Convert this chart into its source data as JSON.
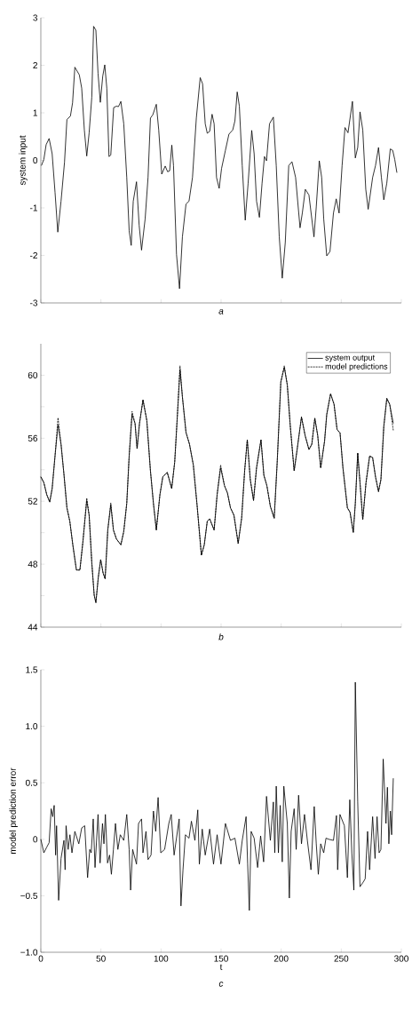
{
  "chart_data": [
    {
      "type": "line",
      "ylabel": "system input",
      "annotations": [
        "a"
      ],
      "xlim": [
        0,
        300
      ],
      "xticks": [
        0,
        50,
        100,
        150,
        200,
        250,
        300
      ],
      "ylim": [
        -3,
        3
      ],
      "yticks": [
        -3,
        -2,
        -1,
        0,
        1,
        2,
        3
      ],
      "tick_labels": "y",
      "series": [
        {
          "color": "#000000",
          "line_style": "solid",
          "x": [
            0.5,
            2.5,
            4.4,
            6.9,
            9.4,
            11.8,
            14.1,
            16.8,
            19.7,
            21.7,
            24.6,
            26.4,
            28.3,
            32,
            34,
            36.2,
            38.2,
            40.2,
            42.4,
            43.9,
            45.8,
            47.6,
            49.5,
            51.5,
            53.2,
            54.9,
            56.7,
            58.2,
            60.6,
            62.9,
            64.6,
            66.6,
            69,
            71.5,
            73.5,
            75.2,
            76.9,
            79.6,
            81.8,
            83.8,
            86.8,
            89.2,
            91.2,
            93.2,
            96.1,
            98.1,
            100.6,
            103.5,
            105.5,
            107.2,
            109,
            110.4,
            112.9,
            115.4,
            117.8,
            120.8,
            123.3,
            126.2,
            129.4,
            132.6,
            134.6,
            136.8,
            138.5,
            140.5,
            142.5,
            144.2,
            146.2,
            148.4,
            150.4,
            153.6,
            156.5,
            159.7,
            161.5,
            163.4,
            165.2,
            167.6,
            170.1,
            172.5,
            175.5,
            177.5,
            179.5,
            181.9,
            184.1,
            186.1,
            187.8,
            190.3,
            193.5,
            195.9,
            198.4,
            200.9,
            203.4,
            206.3,
            209,
            212,
            215.7,
            217.6,
            220.1,
            223.1,
            227.3,
            229.2,
            231.7,
            233.7,
            235.4,
            237.9,
            240.6,
            243.5,
            245.8,
            248.2,
            250.7,
            253.1,
            255.6,
            259.3,
            261.7,
            263.7,
            265.6,
            267.9,
            270.4,
            272.4,
            276.1,
            278.5,
            281,
            283.4,
            285.4,
            287.9,
            290.8,
            292.8,
            294.5,
            296.3
          ],
          "values": [
            -0.11,
            0.02,
            0.33,
            0.46,
            0.14,
            -0.67,
            -1.51,
            -0.86,
            -0.04,
            0.86,
            0.93,
            1.21,
            1.96,
            1.8,
            1.52,
            0.64,
            0.09,
            0.58,
            1.33,
            2.82,
            2.74,
            1.83,
            1.22,
            1.77,
            2.01,
            1.52,
            0.08,
            0.11,
            1.11,
            1.14,
            1.13,
            1.24,
            0.77,
            -0.36,
            -1.48,
            -1.79,
            -0.86,
            -0.45,
            -1.36,
            -1.89,
            -1.23,
            -0.36,
            0.89,
            0.96,
            1.18,
            0.64,
            -0.29,
            -0.12,
            -0.24,
            -0.22,
            0.32,
            -0.11,
            -1.98,
            -2.7,
            -1.61,
            -0.92,
            -0.86,
            -0.36,
            0.89,
            1.74,
            1.61,
            0.77,
            0.57,
            0.61,
            0.97,
            0.77,
            -0.36,
            -0.59,
            -0.17,
            0.21,
            0.55,
            0.64,
            0.83,
            1.44,
            1.14,
            -0.11,
            -1.26,
            -0.48,
            0.63,
            0.14,
            -0.86,
            -1.2,
            -0.48,
            0.08,
            -0.01,
            0.77,
            0.91,
            -0.11,
            -1.61,
            -2.48,
            -1.73,
            -0.11,
            -0.03,
            -0.36,
            -1.42,
            -1.11,
            -0.61,
            -0.73,
            -1.61,
            -0.98,
            -0.01,
            -0.36,
            -1.23,
            -2.01,
            -1.92,
            -1.11,
            -0.81,
            -1.11,
            -0.11,
            0.69,
            0.58,
            1.24,
            0.05,
            0.27,
            1.02,
            0.64,
            -0.61,
            -1.03,
            -0.36,
            -0.11,
            0.27,
            -0.36,
            -0.83,
            -0.48,
            0.24,
            0.21,
            0.02,
            -0.26
          ]
        }
      ]
    },
    {
      "type": "line",
      "annotations": [
        "b"
      ],
      "xlim": [
        0,
        300
      ],
      "xticks": [
        0,
        50,
        100,
        150,
        200,
        250,
        300
      ],
      "ylim": [
        44,
        62
      ],
      "yticks": [
        44,
        {
          "value": 46,
          "label": null
        },
        48,
        {
          "value": 50,
          "label": null
        },
        52,
        {
          "value": 54,
          "label": null
        },
        56,
        {
          "value": 58,
          "label": null
        },
        60
      ],
      "tick_labels": "y",
      "legend": "top right",
      "series": [
        {
          "name": "system output",
          "color": "#000000",
          "line_style": "solid",
          "x": [
            0,
            2.5,
            4.9,
            7.4,
            9.4,
            11.8,
            14.3,
            16.8,
            19.2,
            21.7,
            24.1,
            26.6,
            29.6,
            32.5,
            35,
            38.2,
            40.2,
            42.4,
            44.4,
            45.8,
            47.8,
            49.8,
            51.8,
            53.5,
            55.7,
            58.2,
            60.4,
            62.9,
            66.6,
            69,
            71.5,
            73.5,
            75.9,
            78.4,
            80.1,
            82.1,
            85,
            88.2,
            91.2,
            93.7,
            96.1,
            99.1,
            101.5,
            105.2,
            108.9,
            111.4,
            113.8,
            115.8,
            117.8,
            120.8,
            123.7,
            126.9,
            130.1,
            133.6,
            136,
            138.5,
            140.5,
            144.2,
            146.7,
            149.6,
            152.8,
            155.3,
            157.8,
            160.7,
            164.2,
            167.1,
            169.6,
            171.8,
            174.3,
            177,
            179.5,
            183.2,
            185.6,
            188.1,
            191,
            194.2,
            196.7,
            199.7,
            202.6,
            205.1,
            207.6,
            210.8,
            213.2,
            216.9,
            219.9,
            223.1,
            225.5,
            228,
            230.4,
            232.9,
            236.1,
            237.9,
            241.1,
            244,
            246.5,
            249,
            251.4,
            255.1,
            257.3,
            260,
            261.7,
            263.7,
            265.6,
            267.9,
            270.6,
            273.6,
            276.1,
            278.5,
            281,
            283,
            285.4,
            287.9,
            290.3,
            293.3
          ],
          "values": [
            53.55,
            53.18,
            52.42,
            51.95,
            52.8,
            54.87,
            56.84,
            55.62,
            53.74,
            51.58,
            50.73,
            49.23,
            47.63,
            47.63,
            49.42,
            52.05,
            51.11,
            48.1,
            46.03,
            45.56,
            47.16,
            48.29,
            47.44,
            47.07,
            50.17,
            51.77,
            50.17,
            49.6,
            49.23,
            50.08,
            51.86,
            54.87,
            57.5,
            56.94,
            55.34,
            56.94,
            58.44,
            57.12,
            53.93,
            51.86,
            50.17,
            52.42,
            53.55,
            53.83,
            52.8,
            54.49,
            57.69,
            60.36,
            58.63,
            56.37,
            55.62,
            54.3,
            51.67,
            48.57,
            49.23,
            50.73,
            50.88,
            50.17,
            52.42,
            54.12,
            52.99,
            52.52,
            51.58,
            51.11,
            49.32,
            50.92,
            53.93,
            55.9,
            53.37,
            52.05,
            54.12,
            55.9,
            53.65,
            52.99,
            51.67,
            50.92,
            54.49,
            59.57,
            60.51,
            59.38,
            56.75,
            53.93,
            55.24,
            57.35,
            56.18,
            55.28,
            55.62,
            57.27,
            56.18,
            54.12,
            55.81,
            57.5,
            58.82,
            58.16,
            56.56,
            56.33,
            54.12,
            51.58,
            51.3,
            50.02,
            51.86,
            55.06,
            53.18,
            50.83,
            53.18,
            54.87,
            54.77,
            53.55,
            52.61,
            53.37,
            56.75,
            58.53,
            58.16,
            56.94
          ]
        },
        {
          "name": "model predictions",
          "color": "#000000",
          "line_style": "dashed",
          "x": [
            0,
            2.5,
            4.9,
            7.4,
            9.4,
            11.8,
            14.3,
            16.8,
            19.2,
            21.7,
            24.1,
            26.6,
            29.6,
            32.5,
            35,
            38.2,
            40.2,
            42.4,
            44.4,
            45.8,
            47.8,
            49.8,
            51.8,
            53.5,
            55.7,
            58.2,
            60.4,
            62.9,
            66.6,
            69,
            71.5,
            73.5,
            75.9,
            78.4,
            80.1,
            82.1,
            85,
            88.2,
            91.2,
            93.7,
            96.1,
            99.1,
            101.5,
            105.2,
            108.9,
            111.4,
            113.8,
            115.8,
            117.8,
            120.8,
            123.7,
            126.9,
            130.1,
            133.6,
            136,
            138.5,
            140.5,
            144.2,
            146.7,
            149.6,
            152.8,
            155.3,
            157.8,
            160.7,
            164.2,
            167.1,
            169.6,
            171.8,
            174.3,
            177,
            179.5,
            183.2,
            185.6,
            188.1,
            191,
            194.2,
            196.7,
            199.7,
            202.6,
            205.1,
            207.6,
            210.8,
            213.2,
            216.9,
            219.9,
            223.1,
            225.5,
            228,
            230.4,
            232.9,
            236.1,
            237.9,
            241.1,
            244,
            246.5,
            249,
            251.4,
            255.1,
            257.3,
            260,
            261.7,
            263.7,
            265.6,
            267.9,
            270.6,
            273.6,
            276.1,
            278.5,
            281,
            283,
            285.4,
            287.9,
            290.3,
            293.3
          ],
          "values": [
            53.55,
            53.18,
            52.42,
            51.95,
            52.8,
            54.87,
            57.3,
            55.62,
            53.74,
            51.58,
            50.73,
            49.23,
            47.63,
            47.63,
            49.42,
            52.2,
            51.11,
            48.1,
            46.03,
            45.56,
            47.16,
            48.29,
            47.44,
            47.07,
            50.17,
            51.9,
            50.17,
            49.6,
            49.23,
            50.08,
            51.86,
            54.87,
            57.7,
            56.94,
            55.34,
            56.94,
            58.44,
            57.12,
            53.93,
            51.86,
            50.17,
            52.42,
            53.55,
            53.83,
            52.8,
            54.49,
            57.69,
            60.6,
            58.63,
            56.37,
            55.62,
            54.3,
            51.67,
            48.57,
            49.23,
            50.73,
            50.88,
            50.17,
            52.42,
            54.3,
            52.99,
            52.52,
            51.58,
            51.11,
            49.32,
            50.92,
            53.93,
            55.9,
            53.37,
            52.05,
            54.12,
            55.9,
            53.65,
            52.99,
            51.67,
            50.92,
            54.49,
            59.57,
            60.6,
            59.38,
            56.75,
            53.93,
            55.24,
            57.35,
            56.18,
            55.28,
            55.62,
            57.27,
            56.18,
            54.12,
            55.81,
            57.5,
            58.82,
            58.16,
            56.56,
            56.33,
            54.12,
            51.58,
            51.3,
            50.02,
            51.86,
            55.06,
            53.18,
            50.83,
            53.18,
            54.87,
            54.77,
            53.55,
            52.61,
            53.37,
            56.75,
            58.53,
            58.16,
            56.5
          ]
        }
      ]
    },
    {
      "type": "line",
      "xlabel": "t",
      "ylabel": "model prediction error",
      "annotations": [
        "c"
      ],
      "xlim": [
        0,
        300
      ],
      "xticks": [
        0,
        50,
        100,
        150,
        200,
        250,
        300
      ],
      "ylim": [
        -1.0,
        1.5
      ],
      "yticks": [
        {
          "value": -1.0,
          "label": "−1.0"
        },
        {
          "value": -0.5,
          "label": "−0.5"
        },
        0,
        0.5,
        {
          "value": 1.0,
          "label": "1.0"
        },
        1.5
      ],
      "series": [
        {
          "color": "#000000",
          "line_style": "solid",
          "x": [
            0,
            2.5,
            4.9,
            6.9,
            8.6,
            9.9,
            11.1,
            12.3,
            13.1,
            14.8,
            16.8,
            19.2,
            20.2,
            21,
            22.7,
            24.2,
            25.9,
            28.3,
            31.6,
            34,
            36.5,
            38.9,
            40.7,
            41.9,
            43.6,
            45.1,
            47.6,
            49.3,
            51.3,
            52.5,
            53.7,
            55.5,
            57.2,
            58.7,
            60.4,
            62.1,
            64.1,
            66.1,
            69,
            71.5,
            73.5,
            74.7,
            76.4,
            79.6,
            81.3,
            83.8,
            85,
            87.5,
            89.2,
            91.7,
            93.7,
            95.6,
            97.6,
            99.8,
            103,
            106.5,
            108.5,
            110.9,
            115.1,
            116.6,
            118.3,
            120.3,
            123.3,
            125.3,
            128.2,
            130.6,
            131.9,
            134.3,
            136.8,
            140.5,
            143.7,
            146.7,
            149.9,
            153.6,
            157.8,
            161.5,
            165.2,
            167.6,
            170.8,
            172.1,
            173.5,
            175,
            177.5,
            180.4,
            182.9,
            185.4,
            187.8,
            191,
            193.5,
            194.7,
            195.9,
            197.7,
            199.2,
            200.9,
            202.2,
            205.1,
            206.8,
            208.3,
            210.8,
            212.5,
            214.5,
            216.9,
            219.4,
            221.8,
            224.8,
            227.5,
            229.2,
            230.9,
            232.9,
            235.4,
            237.3,
            239.6,
            243.5,
            246,
            247,
            248.9,
            252.6,
            255.1,
            257.1,
            258.8,
            260.5,
            261.7,
            263.7,
            265.6,
            268.2,
            269.9,
            271.9,
            273.6,
            276.1,
            278.1,
            279.8,
            281.5,
            283,
            284.9,
            287.2,
            288.4,
            289.6,
            290.9,
            291.9,
            293.3
          ],
          "values": [
            0,
            -0.12,
            -0.07,
            -0.03,
            0.27,
            0.2,
            0.3,
            -0.14,
            0.12,
            -0.54,
            -0.17,
            -0.01,
            -0.27,
            0.12,
            -0.09,
            0.04,
            -0.12,
            0.07,
            -0.04,
            0.1,
            0.12,
            -0.34,
            -0.09,
            -0.12,
            0.18,
            -0.25,
            0.22,
            -0.21,
            0.14,
            -0.04,
            0.22,
            -0.21,
            -0.14,
            -0.31,
            -0.09,
            0.14,
            -0.09,
            0.04,
            -0.01,
            0.22,
            -0.09,
            -0.45,
            -0.09,
            -0.22,
            0.14,
            0.18,
            -0.12,
            0.07,
            -0.18,
            -0.14,
            0.25,
            0.07,
            0.37,
            -0.12,
            -0.09,
            0.14,
            0.22,
            -0.14,
            0.18,
            -0.59,
            -0.27,
            0.04,
            0.01,
            0.16,
            -0.01,
            0.26,
            -0.22,
            0.09,
            -0.14,
            0.09,
            -0.22,
            0.04,
            -0.22,
            0.14,
            -0.01,
            0.01,
            -0.22,
            -0.01,
            0.2,
            -0.22,
            -0.63,
            0.07,
            0.01,
            -0.25,
            0.03,
            -0.2,
            0.38,
            -0.01,
            0.33,
            -0.12,
            0.47,
            -0.12,
            0.3,
            -0.2,
            0.47,
            0.14,
            -0.52,
            0.07,
            0.27,
            -0.09,
            0.39,
            -0.04,
            0.22,
            -0.01,
            -0.27,
            0.29,
            -0.04,
            -0.31,
            -0.04,
            -0.12,
            0.01,
            0,
            -0.01,
            0.21,
            -0.27,
            0.22,
            0.12,
            -0.34,
            0.35,
            -0.12,
            -0.45,
            1.39,
            0.33,
            -0.42,
            -0.38,
            -0.35,
            0.07,
            -0.27,
            0.2,
            -0.17,
            0.2,
            -0.12,
            -0.09,
            0.71,
            0.14,
            0.46,
            -0.04,
            0.25,
            0.04,
            0.54
          ]
        }
      ]
    }
  ]
}
